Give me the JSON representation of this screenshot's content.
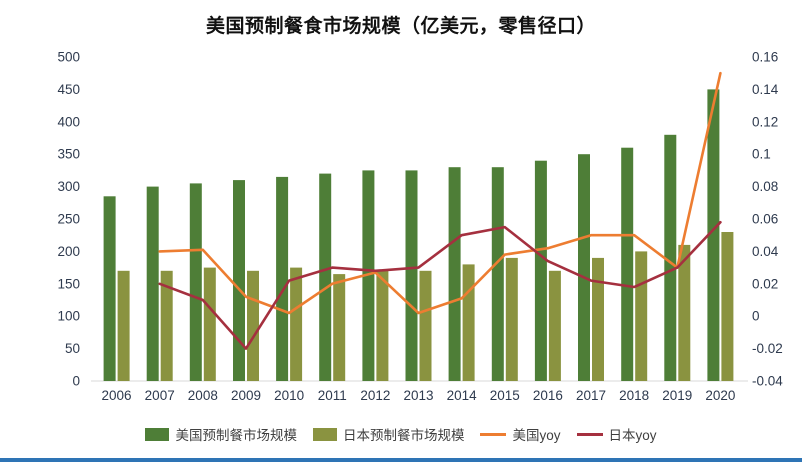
{
  "chart_data": {
    "type": "bar+line",
    "title": "美国预制餐食市场规模（亿美元，零售径口）",
    "categories": [
      "2006",
      "2007",
      "2008",
      "2009",
      "2010",
      "2011",
      "2012",
      "2013",
      "2014",
      "2015",
      "2016",
      "2017",
      "2018",
      "2019",
      "2020"
    ],
    "left_axis": {
      "min": 0,
      "max": 500,
      "step": 50,
      "ticks": [
        "0",
        "50",
        "100",
        "150",
        "200",
        "250",
        "300",
        "350",
        "400",
        "450",
        "500"
      ]
    },
    "right_axis": {
      "min": -0.04,
      "max": 0.16,
      "step": 0.02,
      "ticks": [
        "-0.04",
        "-0.02",
        "0",
        "0.02",
        "0.04",
        "0.06",
        "0.08",
        "0.1",
        "0.12",
        "0.14",
        "0.16"
      ]
    },
    "grid": false,
    "legend_position": "bottom",
    "series": [
      {
        "name": "美国预制餐市场规模",
        "type": "bar",
        "axis": "left",
        "color": "#4e7e37",
        "values": [
          285,
          300,
          305,
          310,
          315,
          320,
          325,
          325,
          330,
          330,
          340,
          350,
          360,
          380,
          450
        ]
      },
      {
        "name": "日本预制餐市场规模",
        "type": "bar",
        "axis": "left",
        "color": "#8a9340",
        "values": [
          170,
          170,
          175,
          170,
          175,
          165,
          170,
          170,
          180,
          190,
          170,
          190,
          200,
          210,
          230
        ]
      },
      {
        "name": "美国yoy",
        "type": "line",
        "axis": "right",
        "color": "#ed7d31",
        "values": [
          null,
          0.04,
          0.041,
          0.012,
          0.002,
          0.02,
          0.027,
          0.002,
          0.011,
          0.038,
          0.042,
          0.05,
          0.05,
          0.03,
          0.15
        ]
      },
      {
        "name": "日本yoy",
        "type": "line",
        "axis": "right",
        "color": "#a5303f",
        "values": [
          null,
          0.02,
          0.01,
          -0.02,
          0.022,
          0.03,
          0.028,
          0.03,
          0.05,
          0.055,
          0.034,
          0.022,
          0.018,
          0.03,
          0.058
        ]
      }
    ]
  },
  "colors": {
    "axis_text": "#2e3a4e",
    "baseline": "#d9d9d9",
    "bottom_bar": "#2e74b5",
    "background": "#ffffff"
  }
}
